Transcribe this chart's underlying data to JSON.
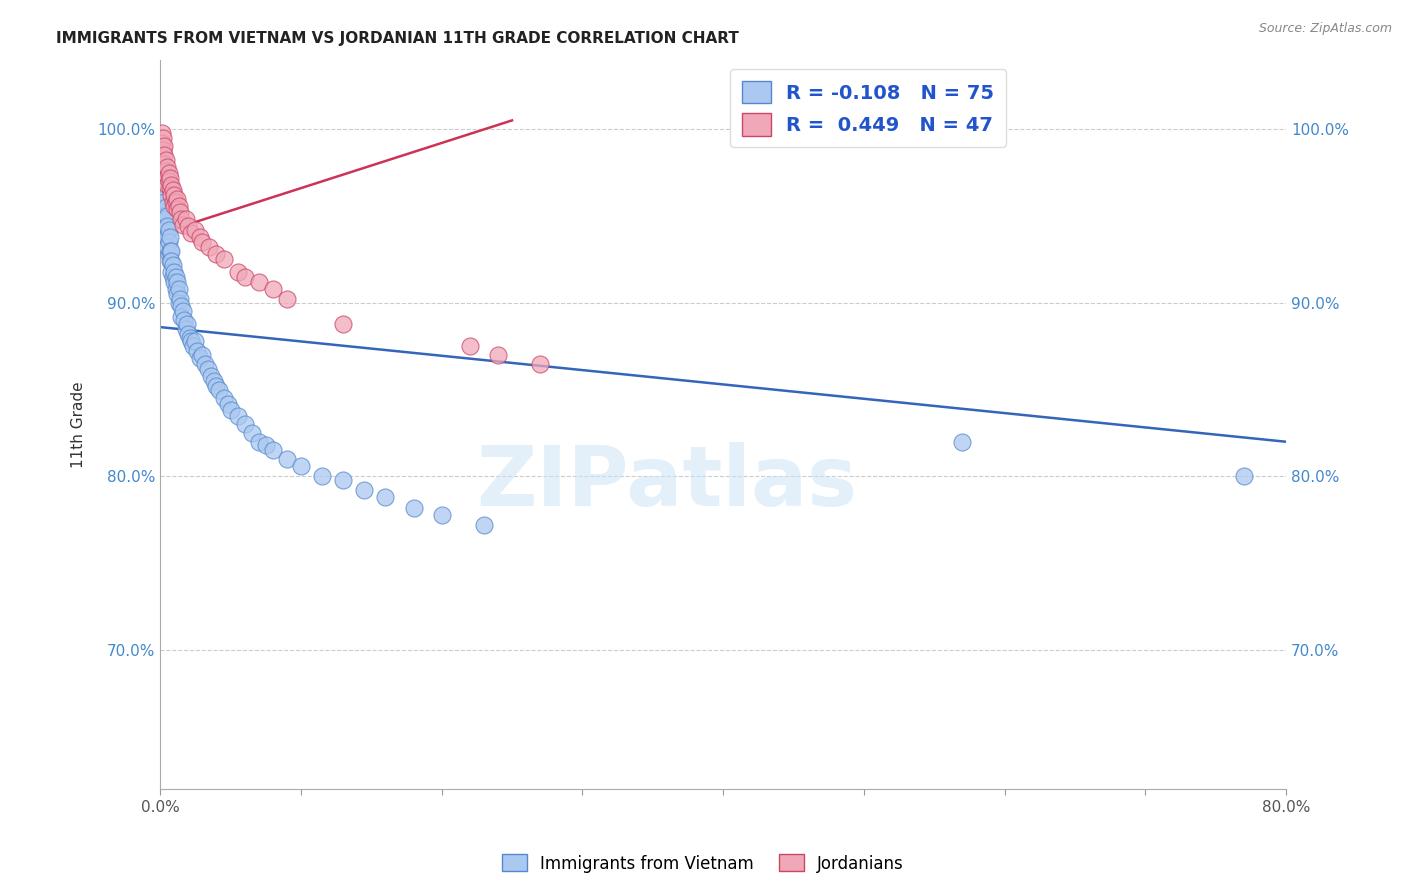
{
  "title": "IMMIGRANTS FROM VIETNAM VS JORDANIAN 11TH GRADE CORRELATION CHART",
  "source": "Source: ZipAtlas.com",
  "ylabel": "11th Grade",
  "watermark": "ZIPatlas",
  "legend_r_blue": "-0.108",
  "legend_n_blue": "75",
  "legend_r_pink": "0.449",
  "legend_n_pink": "47",
  "legend_label_blue": "Immigrants from Vietnam",
  "legend_label_pink": "Jordanians",
  "xlim": [
    0.0,
    0.8
  ],
  "ylim": [
    0.62,
    1.04
  ],
  "xticks": [
    0.0,
    0.1,
    0.2,
    0.3,
    0.4,
    0.5,
    0.6,
    0.7,
    0.8
  ],
  "yticks": [
    0.7,
    0.8,
    0.9,
    1.0
  ],
  "ytick_labels": [
    "70.0%",
    "80.0%",
    "90.0%",
    "100.0%"
  ],
  "blue_color": "#aac8f0",
  "pink_color": "#f0a8b8",
  "blue_edge_color": "#5588cc",
  "pink_edge_color": "#cc4466",
  "blue_line_color": "#3366bb",
  "pink_line_color": "#cc3355",
  "blue_line_x": [
    0.0,
    0.8
  ],
  "blue_line_y": [
    0.886,
    0.82
  ],
  "pink_line_x": [
    0.0,
    0.25
  ],
  "pink_line_y": [
    0.94,
    1.005
  ],
  "blue_scatter_x": [
    0.001,
    0.001,
    0.002,
    0.002,
    0.002,
    0.003,
    0.003,
    0.003,
    0.004,
    0.004,
    0.004,
    0.005,
    0.005,
    0.005,
    0.005,
    0.006,
    0.006,
    0.006,
    0.007,
    0.007,
    0.007,
    0.008,
    0.008,
    0.008,
    0.009,
    0.009,
    0.01,
    0.01,
    0.011,
    0.011,
    0.012,
    0.012,
    0.013,
    0.013,
    0.014,
    0.015,
    0.015,
    0.016,
    0.017,
    0.018,
    0.019,
    0.02,
    0.021,
    0.022,
    0.023,
    0.025,
    0.026,
    0.028,
    0.03,
    0.032,
    0.034,
    0.036,
    0.038,
    0.04,
    0.042,
    0.045,
    0.048,
    0.05,
    0.055,
    0.06,
    0.065,
    0.07,
    0.075,
    0.08,
    0.09,
    0.1,
    0.115,
    0.13,
    0.145,
    0.16,
    0.18,
    0.2,
    0.23,
    0.57,
    0.77
  ],
  "blue_scatter_y": [
    0.98,
    0.97,
    0.975,
    0.965,
    0.96,
    0.962,
    0.958,
    0.95,
    0.955,
    0.948,
    0.943,
    0.95,
    0.944,
    0.938,
    0.932,
    0.942,
    0.935,
    0.928,
    0.938,
    0.93,
    0.924,
    0.93,
    0.924,
    0.918,
    0.922,
    0.915,
    0.918,
    0.912,
    0.915,
    0.908,
    0.912,
    0.905,
    0.908,
    0.9,
    0.902,
    0.898,
    0.892,
    0.895,
    0.89,
    0.885,
    0.888,
    0.882,
    0.88,
    0.878,
    0.875,
    0.878,
    0.872,
    0.868,
    0.87,
    0.865,
    0.862,
    0.858,
    0.855,
    0.852,
    0.85,
    0.845,
    0.842,
    0.838,
    0.835,
    0.83,
    0.825,
    0.82,
    0.818,
    0.815,
    0.81,
    0.806,
    0.8,
    0.798,
    0.792,
    0.788,
    0.782,
    0.778,
    0.772,
    0.82,
    0.8
  ],
  "pink_scatter_x": [
    0.001,
    0.001,
    0.002,
    0.002,
    0.003,
    0.003,
    0.003,
    0.004,
    0.004,
    0.005,
    0.005,
    0.005,
    0.006,
    0.006,
    0.007,
    0.007,
    0.008,
    0.008,
    0.009,
    0.009,
    0.01,
    0.01,
    0.011,
    0.012,
    0.012,
    0.013,
    0.014,
    0.015,
    0.016,
    0.018,
    0.02,
    0.022,
    0.025,
    0.028,
    0.03,
    0.035,
    0.04,
    0.045,
    0.055,
    0.06,
    0.07,
    0.08,
    0.09,
    0.13,
    0.22,
    0.24,
    0.27
  ],
  "pink_scatter_y": [
    0.998,
    0.992,
    0.995,
    0.988,
    0.99,
    0.985,
    0.98,
    0.982,
    0.976,
    0.978,
    0.972,
    0.968,
    0.975,
    0.97,
    0.972,
    0.966,
    0.968,
    0.962,
    0.965,
    0.958,
    0.962,
    0.956,
    0.958,
    0.96,
    0.954,
    0.956,
    0.952,
    0.948,
    0.945,
    0.948,
    0.944,
    0.94,
    0.942,
    0.938,
    0.935,
    0.932,
    0.928,
    0.925,
    0.918,
    0.915,
    0.912,
    0.908,
    0.902,
    0.888,
    0.875,
    0.87,
    0.865
  ]
}
